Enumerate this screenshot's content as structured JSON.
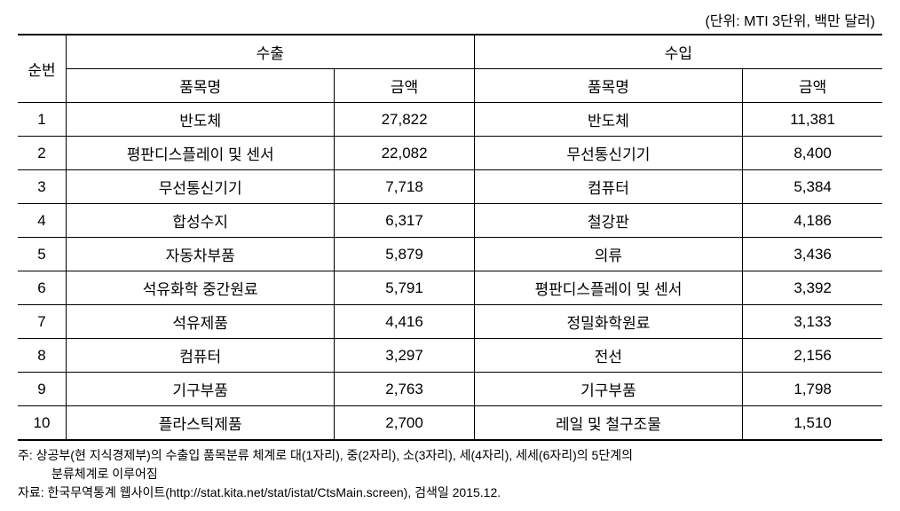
{
  "unit_label": "(단위: MTI 3단위, 백만 달러)",
  "table": {
    "headers": {
      "rank": "순번",
      "export_group": "수출",
      "import_group": "수입",
      "item_name": "품목명",
      "amount": "금액"
    },
    "rows": [
      {
        "rank": "1",
        "export_item": "반도체",
        "export_amount": "27,822",
        "import_item": "반도체",
        "import_amount": "11,381"
      },
      {
        "rank": "2",
        "export_item": "평판디스플레이 및 센서",
        "export_amount": "22,082",
        "import_item": "무선통신기기",
        "import_amount": "8,400"
      },
      {
        "rank": "3",
        "export_item": "무선통신기기",
        "export_amount": "7,718",
        "import_item": "컴퓨터",
        "import_amount": "5,384"
      },
      {
        "rank": "4",
        "export_item": "합성수지",
        "export_amount": "6,317",
        "import_item": "철강판",
        "import_amount": "4,186"
      },
      {
        "rank": "5",
        "export_item": "자동차부품",
        "export_amount": "5,879",
        "import_item": "의류",
        "import_amount": "3,436"
      },
      {
        "rank": "6",
        "export_item": "석유화학 중간원료",
        "export_amount": "5,791",
        "import_item": "평판디스플레이 및 센서",
        "import_amount": "3,392"
      },
      {
        "rank": "7",
        "export_item": "석유제품",
        "export_amount": "4,416",
        "import_item": "정밀화학원료",
        "import_amount": "3,133"
      },
      {
        "rank": "8",
        "export_item": "컴퓨터",
        "export_amount": "3,297",
        "import_item": "전선",
        "import_amount": "2,156"
      },
      {
        "rank": "9",
        "export_item": "기구부품",
        "export_amount": "2,763",
        "import_item": "기구부품",
        "import_amount": "1,798"
      },
      {
        "rank": "10",
        "export_item": "플라스틱제품",
        "export_amount": "2,700",
        "import_item": "레일 및 철구조물",
        "import_amount": "1,510"
      }
    ]
  },
  "footnotes": {
    "note_line1": "주: 상공부(현 지식경제부)의 수출입 품목분류 체계로 대(1자리), 중(2자리), 소(3자리), 세(4자리), 세세(6자리)의 5단계의",
    "note_line2": "분류체계로 이루어짐",
    "source": "자료: 한국무역통계 웹사이트(http://stat.kita.net/stat/istat/CtsMain.screen), 검색일 2015.12."
  }
}
